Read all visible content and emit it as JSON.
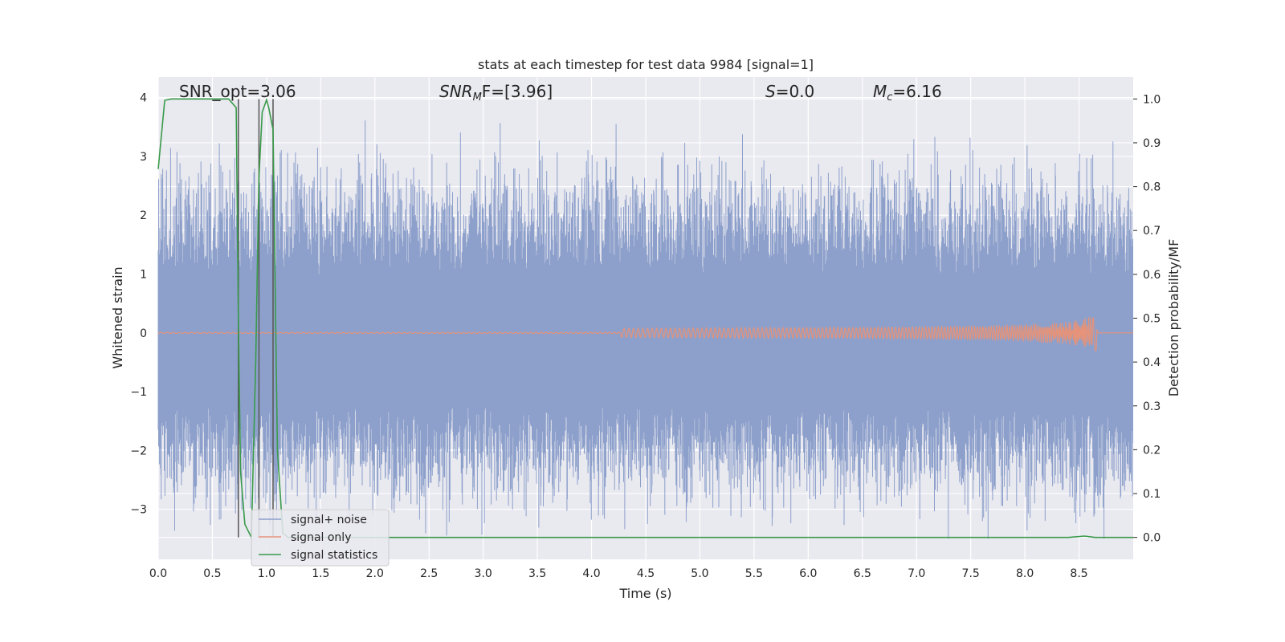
{
  "chart_data": {
    "type": "line",
    "title": "stats at each timestep for test data 9984 [signal=1]",
    "xlabel": "Time (s)",
    "ylabel_left": "Whitened strain",
    "ylabel_right": "Detection probability/MF",
    "xlim": [
      0.0,
      9.0
    ],
    "ylim_left": [
      -3.85,
      4.35
    ],
    "ylim_right": [
      -0.05,
      1.05
    ],
    "x_ticks": [
      "0.0",
      "0.5",
      "1.0",
      "1.5",
      "2.0",
      "2.5",
      "3.0",
      "3.5",
      "4.0",
      "4.5",
      "5.0",
      "5.5",
      "6.0",
      "6.5",
      "7.0",
      "7.5",
      "8.0",
      "8.5"
    ],
    "y_left_ticks": [
      "−3",
      "−2",
      "−1",
      "0",
      "1",
      "2",
      "3",
      "4"
    ],
    "y_right_ticks": [
      "0.0",
      "0.1",
      "0.2",
      "0.3",
      "0.4",
      "0.5",
      "0.6",
      "0.7",
      "0.8",
      "0.9",
      "1.0"
    ],
    "grid": true,
    "legend_position": "lower-left",
    "annotations": {
      "snr_opt": "SNR_opt=3.06",
      "snr_mf_var": "SNR",
      "snr_mf_sub": "M",
      "snr_mf_rest": "F=[3.96]",
      "s_var": "S",
      "s_rest": "=0.0",
      "mc_var": "M",
      "mc_sub": "c",
      "mc_rest": "=6.16"
    },
    "series": [
      {
        "name": "signal+ noise",
        "color": "#8da0cb",
        "axis": "left",
        "description_peaks": {
          "max": 4.0,
          "min": -3.5,
          "band_amplitude": 1.0
        }
      },
      {
        "name": "signal only",
        "color": "#e5937a",
        "axis": "left",
        "chirp_end_time": 8.67,
        "chirp_peak_amplitude": 0.38
      },
      {
        "name": "signal statistics",
        "color": "#3a9a4a",
        "axis": "right",
        "x": [
          0.0,
          0.06,
          0.12,
          0.5,
          0.65,
          0.72,
          0.74,
          0.76,
          0.8,
          0.86,
          0.9,
          0.93,
          0.96,
          1.0,
          1.02,
          1.06,
          1.1,
          1.15,
          1.2,
          1.5,
          8.4,
          8.55,
          8.65,
          9.0
        ],
        "y": [
          0.84,
          0.997,
          1.0,
          1.0,
          1.0,
          0.98,
          0.5,
          0.15,
          0.03,
          0.0,
          0.4,
          0.82,
          0.97,
          0.998,
          0.98,
          0.93,
          0.2,
          0.01,
          0.0,
          0.0,
          0.0,
          0.003,
          0.0,
          0.0
        ]
      }
    ],
    "vertical_lines": [
      0.74,
      0.93,
      1.06
    ]
  }
}
